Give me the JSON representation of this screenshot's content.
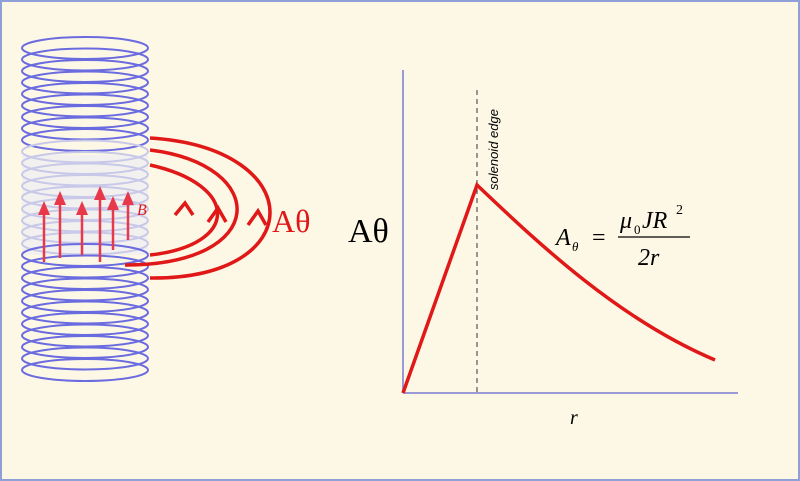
{
  "labels": {
    "b_field": "B",
    "a_theta_field": "Aθ",
    "y_axis": "Aθ",
    "x_axis": "r",
    "edge": "solenoid edge"
  },
  "formula": {
    "lhs": "A",
    "lhs_sub": "θ",
    "equals": "=",
    "mu": "μ",
    "mu_sub": "0",
    "jr": "JR",
    "sup": "2",
    "denominator": "2r"
  }
}
